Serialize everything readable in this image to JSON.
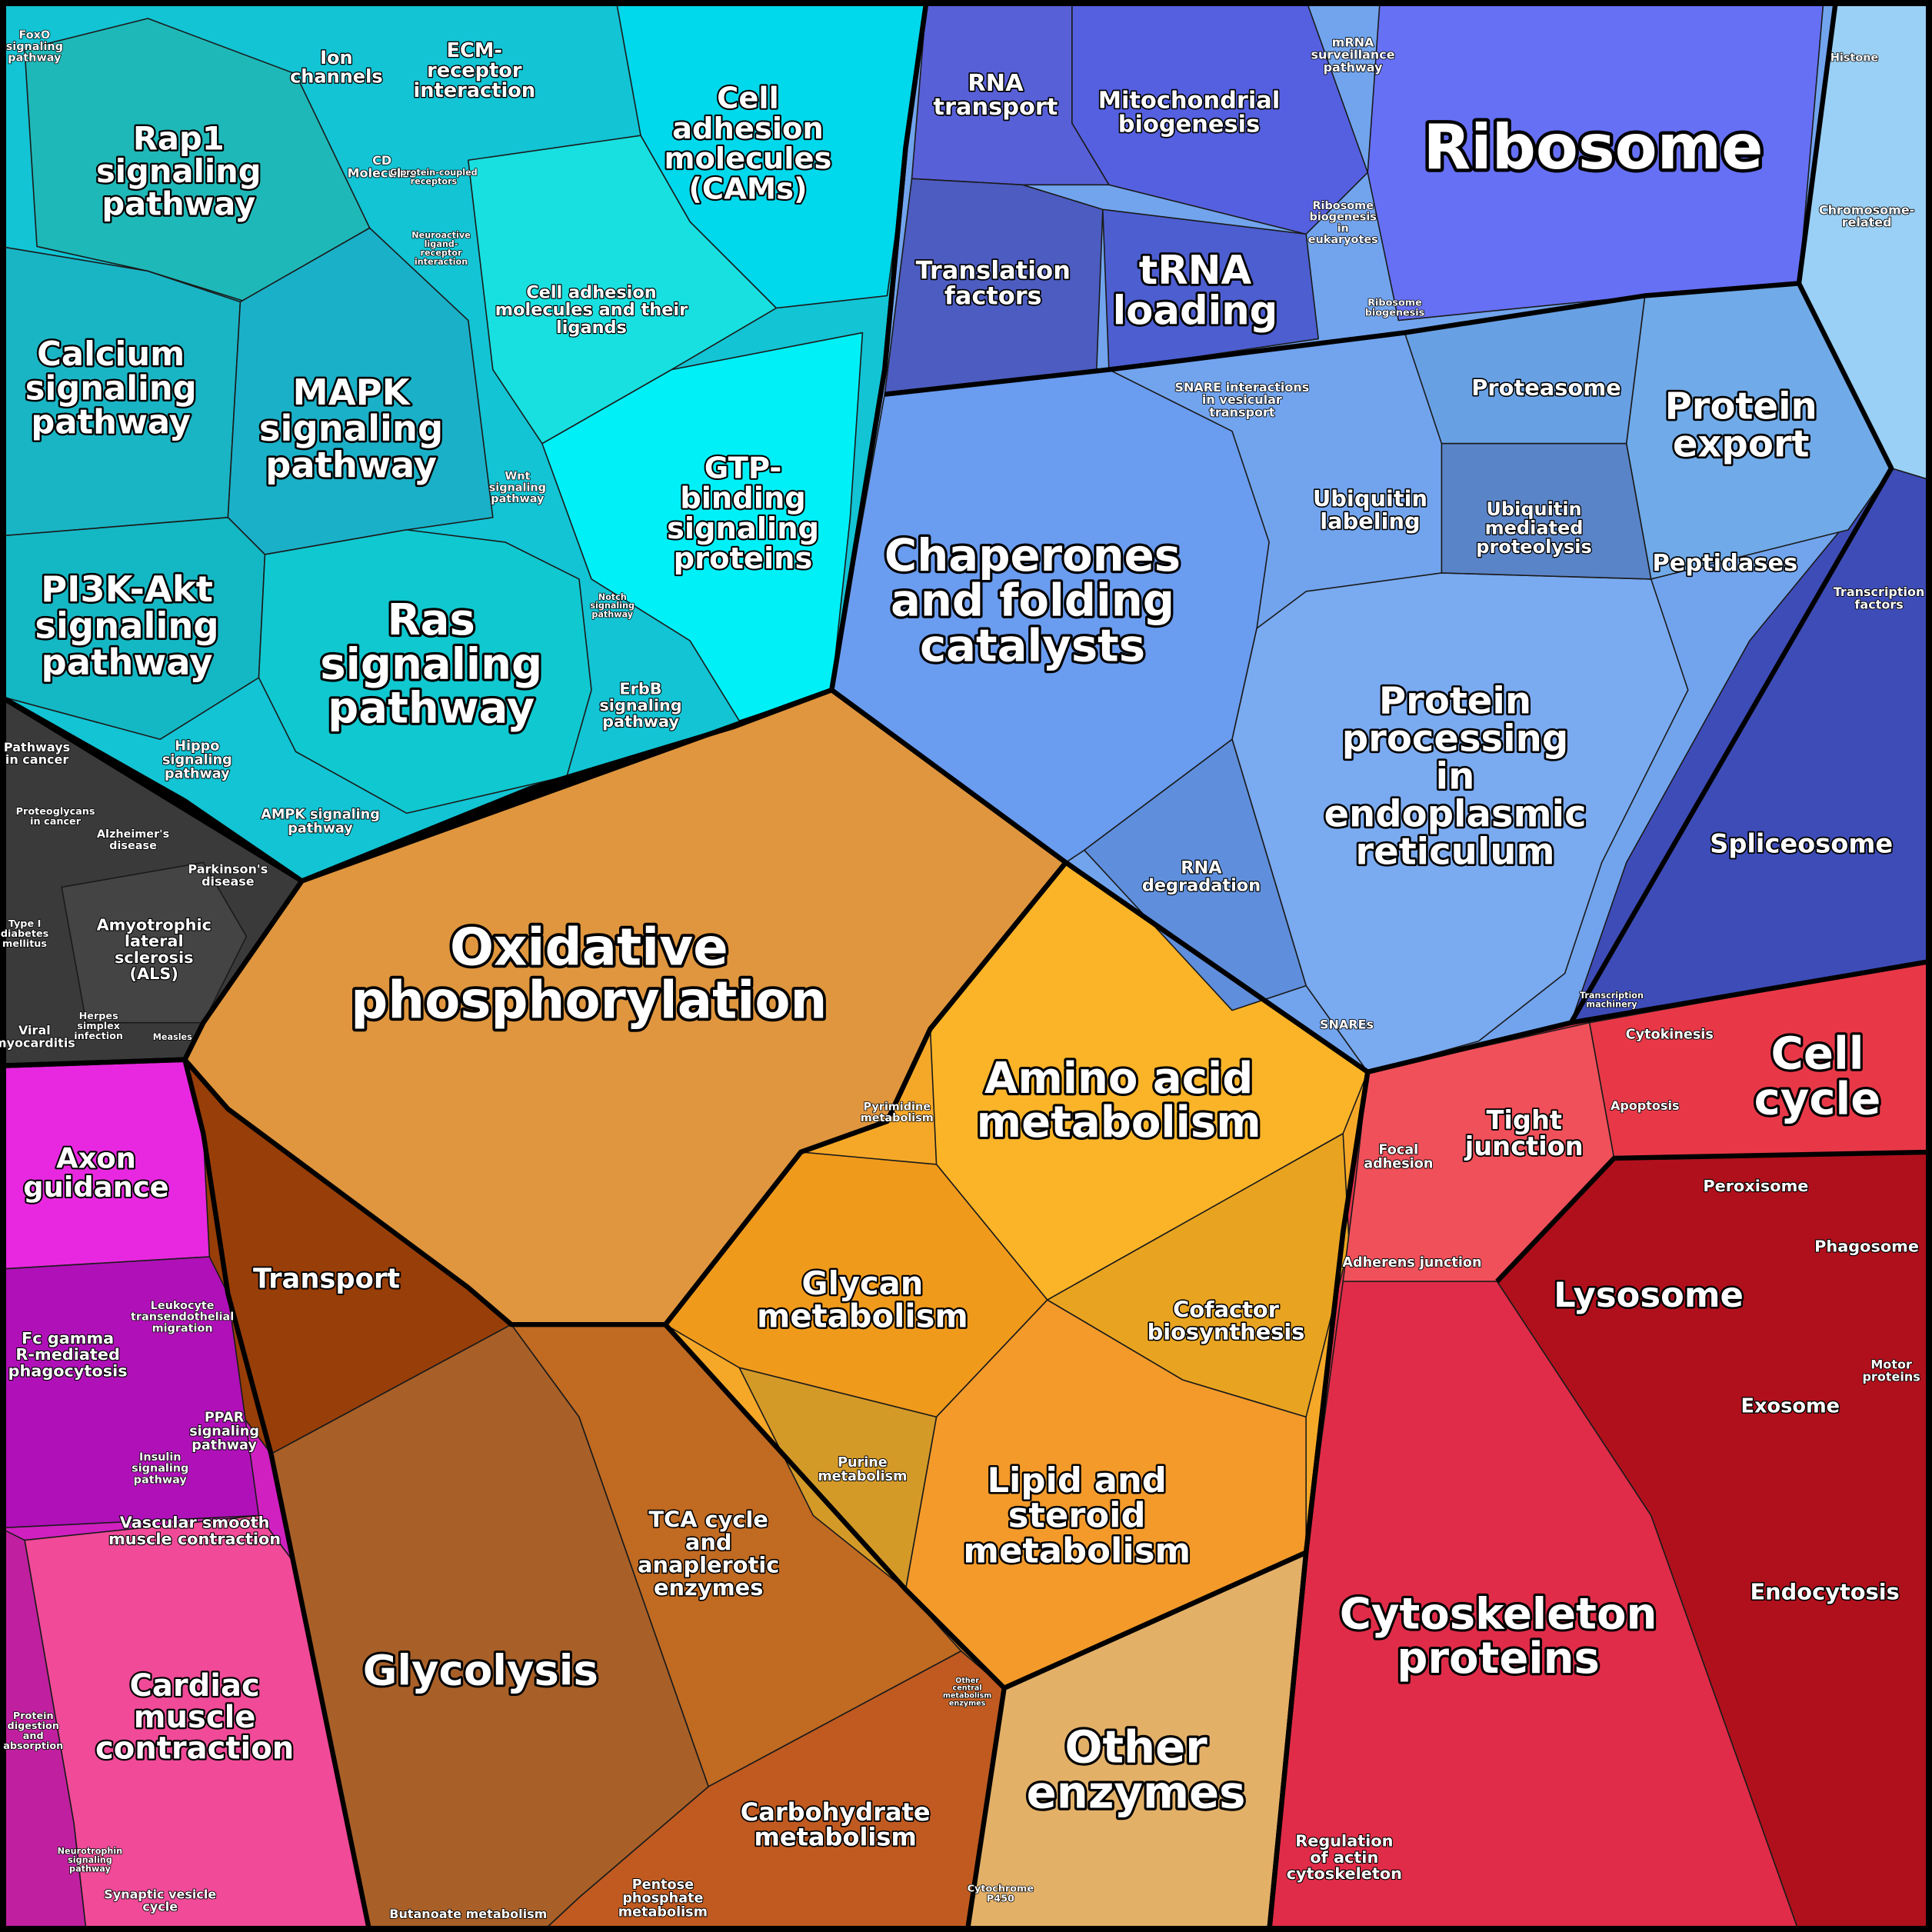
{
  "labels": [
    [
      "FoxO",
      "signaling",
      "pathway"
    ],
    [
      "Ion",
      "channels"
    ],
    [
      "ECM-",
      "receptor",
      "interaction"
    ],
    [
      "Cell",
      "adhesion",
      "molecules",
      "(CAMs)"
    ],
    [
      "Rap1",
      "signaling",
      "pathway"
    ],
    [
      "CD",
      "Molecules"
    ],
    [
      "G protein-coupled",
      "receptors"
    ],
    [
      "Neuroactive",
      "ligand-",
      "receptor",
      "interaction"
    ],
    [
      "Cell adhesion",
      "molecules and their",
      "ligands"
    ],
    [
      "Calcium",
      "signaling",
      "pathway"
    ],
    [
      "MAPK",
      "signaling",
      "pathway"
    ],
    [
      "Wnt",
      "signaling",
      "pathway"
    ],
    [
      "GTP-",
      "binding",
      "signaling",
      "proteins"
    ],
    [
      "PI3K-Akt",
      "signaling",
      "pathway"
    ],
    [
      "Ras",
      "signaling",
      "pathway"
    ],
    [
      "Notch",
      "signaling",
      "pathway"
    ],
    [
      "ErbB",
      "signaling",
      "pathway"
    ],
    [
      "Hippo",
      "signaling",
      "pathway"
    ],
    [
      "AMPK signaling",
      "pathway"
    ],
    [
      "Pathways",
      "in cancer"
    ],
    [
      "Proteoglycans",
      "in cancer"
    ],
    [
      "Alzheimer's",
      "disease"
    ],
    [
      "Parkinson's",
      "disease"
    ],
    [
      "Amyotrophic",
      "lateral",
      "sclerosis",
      "(ALS)"
    ],
    [
      "Type I",
      "diabetes",
      "mellitus"
    ],
    [
      "Viral",
      "myocarditis"
    ],
    [
      "Herpes",
      "simplex",
      "infection"
    ],
    [
      "Measles"
    ],
    [
      "Axon",
      "guidance"
    ],
    [
      "Fc gamma",
      "R-mediated",
      "phagocytosis"
    ],
    [
      "Leukocyte",
      "transendothelial",
      "migration"
    ],
    [
      "PPAR",
      "signaling",
      "pathway"
    ],
    [
      "Insulin",
      "signaling",
      "pathway"
    ],
    [
      "Vascular smooth",
      "muscle contraction"
    ],
    [
      "Cardiac",
      "muscle",
      "contraction"
    ],
    [
      "Protein",
      "digestion",
      "and",
      "absorption"
    ],
    [
      "Neurotrophin",
      "signaling",
      "pathway"
    ],
    [
      "Synaptic vesicle",
      "cycle"
    ],
    [
      "Oxidative",
      "phosphorylation"
    ],
    [
      "Transport"
    ],
    [
      "Glycolysis"
    ],
    [
      "TCA cycle",
      "and",
      "anaplerotic",
      "enzymes"
    ],
    [
      "Carbohydrate",
      "metabolism"
    ],
    [
      "Pentose",
      "phosphate",
      "metabolism"
    ],
    [
      "Butanoate metabolism"
    ],
    [
      "Pyrimidine",
      "metabolism"
    ],
    [
      "Amino acid",
      "metabolism"
    ],
    [
      "Glycan",
      "metabolism"
    ],
    [
      "Cofactor",
      "biosynthesis"
    ],
    [
      "Purine",
      "metabolism"
    ],
    [
      "Lipid and",
      "steroid",
      "metabolism"
    ],
    [
      "Other",
      "central",
      "metabolism",
      "enzymes"
    ],
    [
      "Other",
      "enzymes"
    ],
    [
      "Cytochrome",
      "P450"
    ],
    [
      "RNA",
      "transport"
    ],
    [
      "Mitochondrial",
      "biogenesis"
    ],
    [
      "mRNA",
      "surveillance",
      "pathway"
    ],
    [
      "Ribosome"
    ],
    [
      "Translation",
      "factors"
    ],
    [
      "tRNA",
      "loading"
    ],
    [
      "Ribosome",
      "biogenesis",
      "in",
      "eukaryotes"
    ],
    [
      "Ribosome",
      "biogenesis"
    ],
    [
      "Histone"
    ],
    [
      "Chromosome-",
      "related"
    ],
    [
      "SNARE interactions",
      "in vesicular",
      "transport"
    ],
    [
      "Proteasome"
    ],
    [
      "Protein",
      "export"
    ],
    [
      "Chaperones",
      "and folding",
      "catalysts"
    ],
    [
      "Ubiquitin",
      "labeling"
    ],
    [
      "Ubiquitin",
      "mediated",
      "proteolysis"
    ],
    [
      "Peptidases"
    ],
    [
      "Transcription",
      "factors"
    ],
    [
      "Protein",
      "processing",
      "in",
      "endoplasmic",
      "reticulum"
    ],
    [
      "RNA",
      "degradation"
    ],
    [
      "SNAREs"
    ],
    [
      "Spliceosome"
    ],
    [
      "Transcription",
      "machinery"
    ],
    [
      "Cytokinesis"
    ],
    [
      "Cell",
      "cycle"
    ],
    [
      "Apoptosis"
    ],
    [
      "Tight",
      "junction"
    ],
    [
      "Focal",
      "adhesion"
    ],
    [
      "Peroxisome"
    ],
    [
      "Phagosome"
    ],
    [
      "Adherens junction"
    ],
    [
      "Lysosome"
    ],
    [
      "Motor",
      "proteins"
    ],
    [
      "Exosome"
    ],
    [
      "Endocytosis"
    ],
    [
      "Cytoskeleton",
      "proteins"
    ],
    [
      "Regulation",
      "of actin",
      "cytoskeleton"
    ]
  ]
}
